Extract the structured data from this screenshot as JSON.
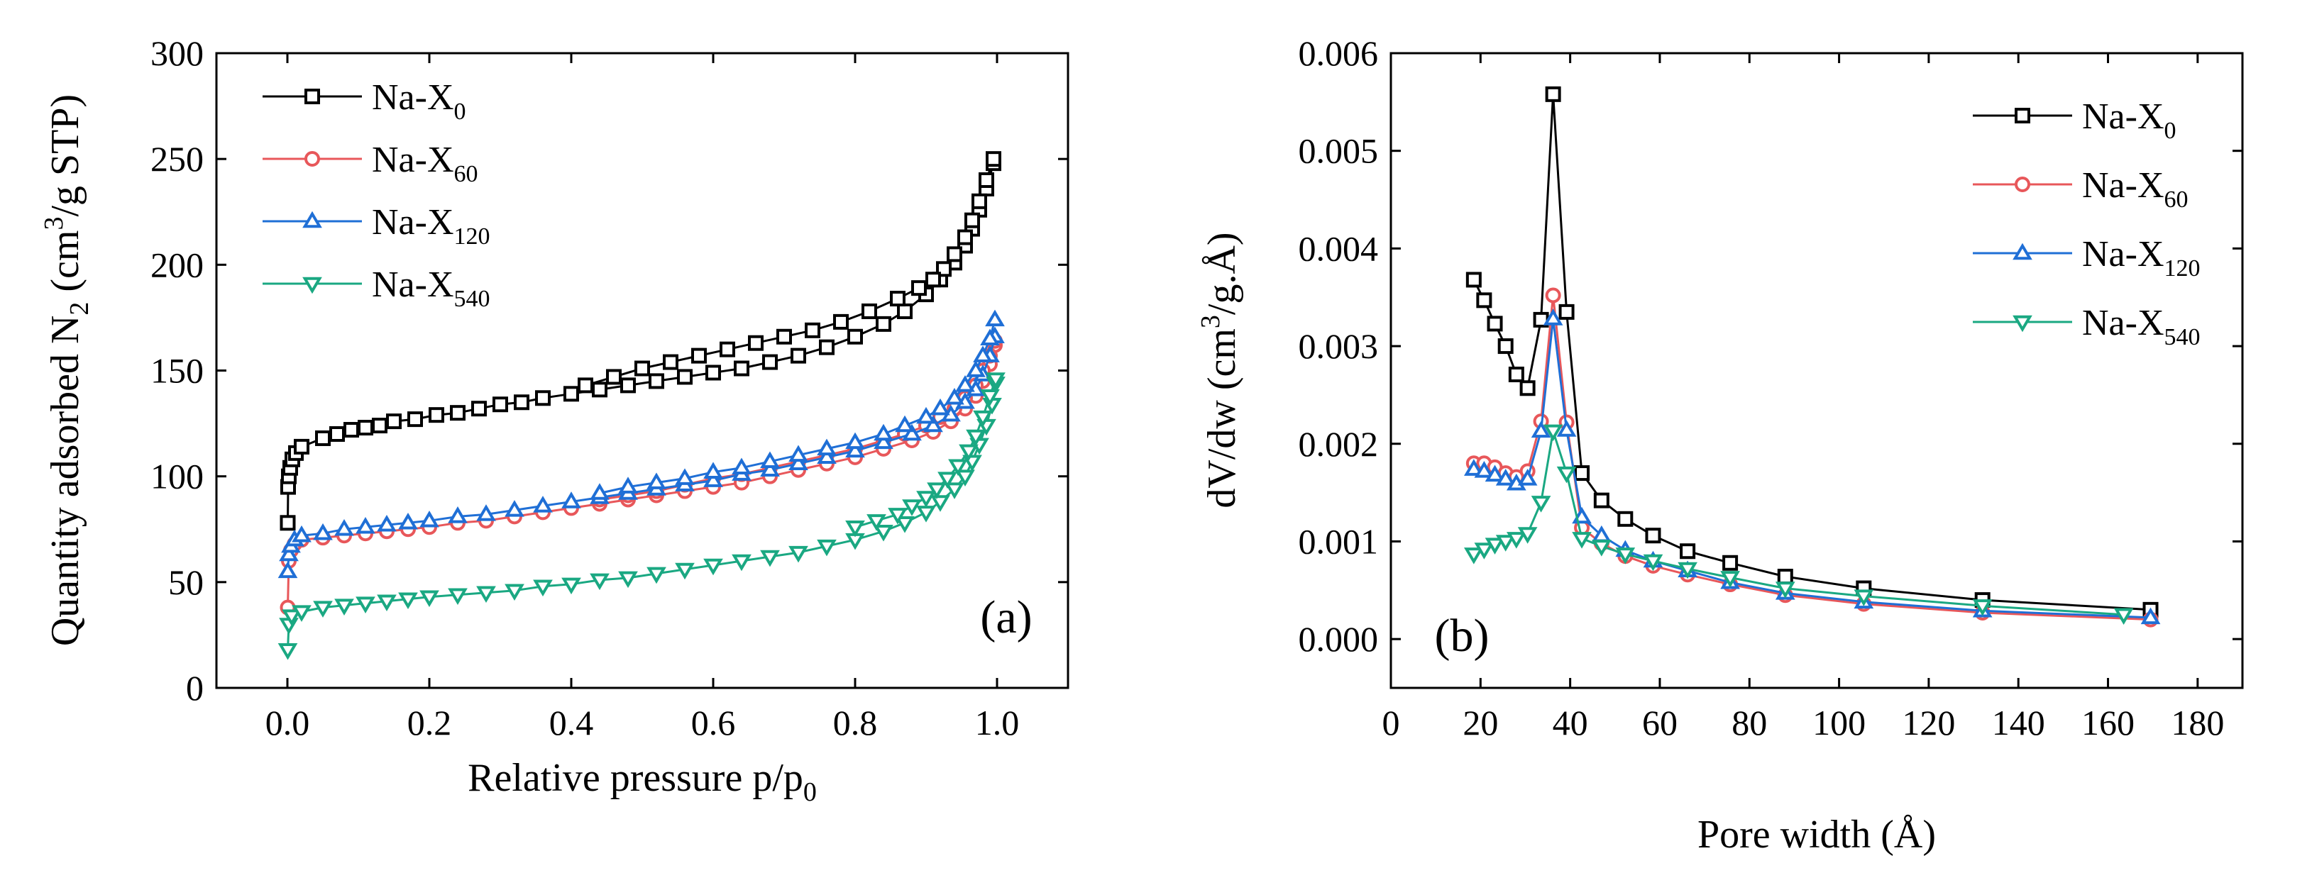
{
  "chart_data": [
    {
      "type": "scatter",
      "panel_label": "(a)",
      "title": "",
      "xlabel": "Relative pressure p/p",
      "xlabel_sub": "0",
      "ylabel": "Quantity adsorbed N",
      "ylabel_sub": "2",
      "ylabel_unit_pre": " (cm",
      "ylabel_unit_sup": "3",
      "ylabel_unit_post": "/g STP)",
      "xlim": [
        -0.1,
        1.1
      ],
      "ylim": [
        0,
        300
      ],
      "xticks": [
        0.0,
        0.2,
        0.4,
        0.6,
        0.8,
        1.0
      ],
      "xtick_labels": [
        "0.0",
        "0.2",
        "0.4",
        "0.6",
        "0.8",
        "1.0"
      ],
      "yticks": [
        0,
        50,
        100,
        150,
        200,
        250,
        300
      ],
      "ytick_labels": [
        "0",
        "50",
        "100",
        "150",
        "200",
        "250",
        "300"
      ],
      "legend_position": "top-left",
      "series": [
        {
          "name": "Na-X",
          "sub": "0",
          "color": "#000000",
          "marker": "square",
          "adsorption": {
            "x": [
              0.0005,
              0.001,
              0.002,
              0.004,
              0.007,
              0.012,
              0.02,
              0.05,
              0.07,
              0.09,
              0.11,
              0.13,
              0.15,
              0.18,
              0.21,
              0.24,
              0.27,
              0.3,
              0.33,
              0.36,
              0.4,
              0.44,
              0.48,
              0.52,
              0.56,
              0.6,
              0.64,
              0.68,
              0.72,
              0.76,
              0.8,
              0.84,
              0.87,
              0.9,
              0.92,
              0.94,
              0.955,
              0.965,
              0.975,
              0.985,
              0.995
            ],
            "y": [
              78,
              95,
              100,
              104,
              108,
              111,
              114,
              118,
              120,
              122,
              123,
              124,
              126,
              127,
              129,
              130,
              132,
              134,
              135,
              137,
              139,
              141,
              143,
              145,
              147,
              149,
              151,
              154,
              157,
              161,
              166,
              172,
              178,
              186,
              193,
              201,
              209,
              217,
              226,
              236,
              248
            ]
          },
          "desorption": {
            "x": [
              0.995,
              0.985,
              0.975,
              0.965,
              0.955,
              0.94,
              0.925,
              0.91,
              0.89,
              0.86,
              0.82,
              0.78,
              0.74,
              0.7,
              0.66,
              0.62,
              0.58,
              0.54,
              0.5,
              0.46,
              0.42
            ],
            "y": [
              250,
              240,
              230,
              221,
              213,
              205,
              198,
              193,
              189,
              184,
              178,
              173,
              169,
              166,
              163,
              160,
              157,
              154,
              151,
              147,
              143
            ]
          }
        },
        {
          "name": "Na-X",
          "sub": "60",
          "color": "#e8575a",
          "marker": "circle",
          "adsorption": {
            "x": [
              0.0005,
              0.002,
              0.005,
              0.01,
              0.02,
              0.05,
              0.08,
              0.11,
              0.14,
              0.17,
              0.2,
              0.24,
              0.28,
              0.32,
              0.36,
              0.4,
              0.44,
              0.48,
              0.52,
              0.56,
              0.6,
              0.64,
              0.68,
              0.72,
              0.76,
              0.8,
              0.84,
              0.88,
              0.91,
              0.935,
              0.955,
              0.97,
              0.98,
              0.99,
              0.997
            ],
            "y": [
              38,
              60,
              65,
              68,
              70,
              71,
              72,
              73,
              74,
              75,
              76,
              78,
              79,
              81,
              83,
              85,
              87,
              89,
              91,
              93,
              95,
              97,
              100,
              103,
              106,
              109,
              113,
              117,
              121,
              126,
              132,
              138,
              145,
              153,
              162
            ]
          },
          "desorption": {
            "x": [
              0.997,
              0.99,
              0.98,
              0.97,
              0.955,
              0.94,
              0.92,
              0.9,
              0.87,
              0.84,
              0.8,
              0.76,
              0.72,
              0.68,
              0.64,
              0.6,
              0.56,
              0.52,
              0.48,
              0.44
            ],
            "y": [
              164,
              157,
              150,
              143,
              137,
              132,
              128,
              124,
              120,
              117,
              113,
              110,
              107,
              104,
              101,
              99,
              96,
              93,
              91,
              89
            ]
          }
        },
        {
          "name": "Na-X",
          "sub": "120",
          "color": "#1f6fd6",
          "marker": "triangle-up",
          "adsorption": {
            "x": [
              0.0005,
              0.002,
              0.005,
              0.01,
              0.02,
              0.05,
              0.08,
              0.11,
              0.14,
              0.17,
              0.2,
              0.24,
              0.28,
              0.32,
              0.36,
              0.4,
              0.44,
              0.48,
              0.52,
              0.56,
              0.6,
              0.64,
              0.68,
              0.72,
              0.76,
              0.8,
              0.84,
              0.88,
              0.91,
              0.935,
              0.955,
              0.97,
              0.98,
              0.99,
              0.997
            ],
            "y": [
              55,
              63,
              67,
              70,
              72,
              73,
              75,
              76,
              77,
              78,
              79,
              81,
              82,
              84,
              86,
              88,
              90,
              92,
              94,
              96,
              98,
              101,
              103,
              106,
              109,
              112,
              116,
              120,
              124,
              129,
              135,
              141,
              148,
              157,
              166
            ]
          },
          "desorption": {
            "x": [
              0.997,
              0.99,
              0.98,
              0.97,
              0.955,
              0.94,
              0.92,
              0.9,
              0.87,
              0.84,
              0.8,
              0.76,
              0.72,
              0.68,
              0.64,
              0.6,
              0.56,
              0.52,
              0.48,
              0.44
            ],
            "y": [
              174,
              165,
              157,
              150,
              143,
              137,
              132,
              128,
              124,
              120,
              116,
              113,
              110,
              107,
              104,
              102,
              99,
              97,
              95,
              92
            ]
          }
        },
        {
          "name": "Na-X",
          "sub": "540",
          "color": "#1aa882",
          "marker": "triangle-down",
          "adsorption": {
            "x": [
              0.0005,
              0.002,
              0.006,
              0.02,
              0.05,
              0.08,
              0.11,
              0.14,
              0.17,
              0.2,
              0.24,
              0.28,
              0.32,
              0.36,
              0.4,
              0.44,
              0.48,
              0.52,
              0.56,
              0.6,
              0.64,
              0.68,
              0.72,
              0.76,
              0.8,
              0.84,
              0.87,
              0.9,
              0.92,
              0.94,
              0.955,
              0.965,
              0.975,
              0.985,
              0.993,
              0.998
            ],
            "y": [
              18,
              30,
              34,
              36,
              38,
              39,
              40,
              41,
              42,
              43,
              44,
              45,
              46,
              48,
              49,
              51,
              52,
              54,
              56,
              58,
              60,
              62,
              64,
              67,
              70,
              74,
              78,
              83,
              88,
              94,
              100,
              107,
              115,
              124,
              134,
              144
            ]
          },
          "desorption": {
            "x": [
              0.998,
              0.99,
              0.98,
              0.97,
              0.96,
              0.945,
              0.93,
              0.915,
              0.9,
              0.88,
              0.86,
              0.83,
              0.8
            ],
            "y": [
              146,
              138,
              128,
              119,
              112,
              105,
              99,
              94,
              90,
              86,
              82,
              79,
              76
            ]
          }
        }
      ]
    },
    {
      "type": "line",
      "panel_label": "(b)",
      "title": "",
      "xlabel": "Pore width (Å)",
      "ylabel": "dV/dw (cm",
      "ylabel_sup": "3",
      "ylabel_post": "/g.Å)",
      "xlim": [
        0,
        190
      ],
      "ylim": [
        -0.0005,
        0.006
      ],
      "xticks": [
        0,
        20,
        40,
        60,
        80,
        100,
        120,
        140,
        160,
        180
      ],
      "xtick_labels": [
        "0",
        "20",
        "40",
        "60",
        "80",
        "100",
        "120",
        "140",
        "160",
        "180"
      ],
      "yticks": [
        0.0,
        0.001,
        0.002,
        0.003,
        0.004,
        0.005,
        0.006
      ],
      "ytick_labels": [
        "0.000",
        "0.001",
        "0.002",
        "0.003",
        "0.004",
        "0.005",
        "0.006"
      ],
      "legend_position": "top-right",
      "series": [
        {
          "name": "Na-X",
          "sub": "0",
          "color": "#000000",
          "marker": "square",
          "x": [
            18.5,
            20.8,
            23.2,
            25.6,
            28.0,
            30.5,
            33.5,
            36.2,
            39.2,
            42.6,
            47.0,
            52.3,
            58.5,
            66.2,
            75.7,
            88.0,
            105.5,
            132.0,
            169.5
          ],
          "y": [
            0.00368,
            0.00347,
            0.00323,
            0.003,
            0.00271,
            0.00257,
            0.00327,
            0.00558,
            0.00335,
            0.0017,
            0.00142,
            0.00123,
            0.00106,
            0.0009,
            0.00078,
            0.00064,
            0.00052,
            0.0004,
            0.0003
          ]
        },
        {
          "name": "Na-X",
          "sub": "60",
          "color": "#e8575a",
          "marker": "circle",
          "x": [
            18.5,
            20.8,
            23.2,
            25.6,
            28.0,
            30.5,
            33.5,
            36.2,
            39.2,
            42.6,
            47.0,
            52.3,
            58.5,
            66.2,
            75.7,
            88.0,
            105.5,
            132.0,
            169.5
          ],
          "y": [
            0.0018,
            0.0018,
            0.00176,
            0.0017,
            0.00166,
            0.00172,
            0.00223,
            0.00352,
            0.00222,
            0.00114,
            0.00098,
            0.00085,
            0.00075,
            0.00066,
            0.00056,
            0.00045,
            0.00036,
            0.00027,
            0.0002
          ]
        },
        {
          "name": "Na-X",
          "sub": "120",
          "color": "#1f6fd6",
          "marker": "triangle-up",
          "x": [
            18.5,
            20.8,
            23.2,
            25.6,
            28.0,
            30.5,
            33.5,
            36.2,
            39.2,
            42.6,
            47.0,
            52.3,
            58.5,
            66.2,
            75.7,
            88.0,
            105.5,
            132.0,
            169.5
          ],
          "y": [
            0.00174,
            0.00172,
            0.00168,
            0.00164,
            0.00159,
            0.00164,
            0.00213,
            0.00328,
            0.00214,
            0.00125,
            0.00106,
            0.00091,
            0.0008,
            0.0007,
            0.00058,
            0.00047,
            0.00038,
            0.00029,
            0.00022
          ]
        },
        {
          "name": "Na-X",
          "sub": "540",
          "color": "#1aa882",
          "marker": "triangle-down",
          "x": [
            18.5,
            20.8,
            23.2,
            25.6,
            28.0,
            30.5,
            33.5,
            36.2,
            39.2,
            42.6,
            47.0,
            52.3,
            58.5,
            66.2,
            75.7,
            88.0,
            105.5,
            132.0,
            163.5
          ],
          "y": [
            0.00087,
            0.00092,
            0.00097,
            0.001,
            0.00103,
            0.00108,
            0.0014,
            0.00213,
            0.0017,
            0.00103,
            0.00095,
            0.00087,
            0.0008,
            0.00072,
            0.00063,
            0.00052,
            0.00044,
            0.00034,
            0.00025
          ]
        }
      ]
    }
  ]
}
